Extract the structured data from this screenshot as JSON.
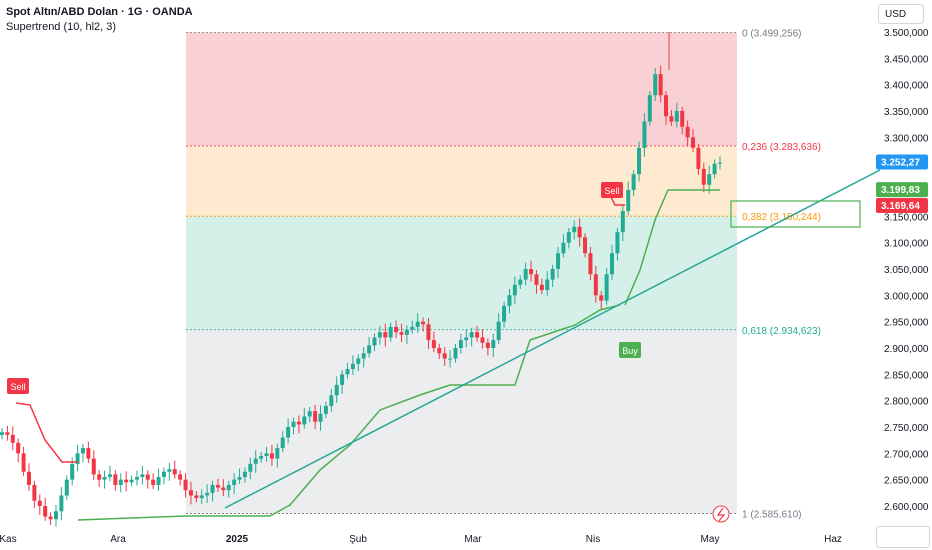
{
  "header": {
    "title": "Spot Altın/ABD Dolan · 1G · OANDA",
    "indicator": "Supertrend (10, hl2, 3)",
    "currency": "USD"
  },
  "colors": {
    "up": "#22ab94",
    "down": "#f23645",
    "trendline": "#26a69a",
    "supertrend_up": "#4caf50",
    "supertrend_down": "#f23645",
    "fib_red": "#f7c2c6",
    "fib_orange": "#fde3c1",
    "fib_green": "#c7ebe2",
    "fib_grey": "#e6e7ea"
  },
  "chart_data": {
    "type": "candlestick",
    "y_ticks": [
      "3.500,000",
      "3.450,000",
      "3.400,000",
      "3.350,000",
      "3.300,000",
      "3.250,000",
      "3.200,000",
      "3.150,000",
      "3.100,000",
      "3.050,000",
      "3.000,000",
      "2.950,000",
      "2.900,000",
      "2.850,000",
      "2.800,000",
      "2.750,000",
      "2.700,000",
      "2.650,000",
      "2.600,000"
    ],
    "y_values": [
      3500,
      3450,
      3400,
      3350,
      3300,
      3250,
      3200,
      3150,
      3100,
      3050,
      3000,
      2950,
      2900,
      2850,
      2800,
      2750,
      2700,
      2650,
      2600
    ],
    "x_ticks": [
      "Kas",
      "Ara",
      "2025",
      "Şub",
      "Mar",
      "Nis",
      "May",
      "Haz"
    ],
    "fibonacci": [
      {
        "label": "0 (3.499,256)",
        "value": 3499.256
      },
      {
        "label": "0,236 (3.283,636)",
        "value": 3283.636
      },
      {
        "label": "0,382 (3.150,244)",
        "value": 3150.244
      },
      {
        "label": "0,618 (2.934,623)",
        "value": 2934.623
      },
      {
        "label": "1 (2.585,610)",
        "value": 2585.61
      }
    ],
    "price_labels": [
      {
        "text": "3.252,27",
        "value": 3252.27,
        "color": "#2196f3"
      },
      {
        "text": "3.199,83",
        "value": 3199.83,
        "color": "#4caf50"
      },
      {
        "text": "3.169,64",
        "value": 3169.64,
        "color": "#f23645"
      }
    ],
    "signals": [
      {
        "text": "Sell",
        "type": "sell"
      },
      {
        "text": "Sell",
        "type": "sell"
      },
      {
        "text": "Buy",
        "type": "buy"
      }
    ],
    "closes": [
      2740,
      2735,
      2720,
      2700,
      2665,
      2640,
      2610,
      2600,
      2580,
      2575,
      2590,
      2620,
      2650,
      2680,
      2700,
      2710,
      2690,
      2660,
      2650,
      2655,
      2660,
      2640,
      2650,
      2645,
      2650,
      2655,
      2660,
      2650,
      2640,
      2655,
      2665,
      2670,
      2660,
      2650,
      2630,
      2620,
      2615,
      2620,
      2625,
      2640,
      2635,
      2630,
      2640,
      2650,
      2655,
      2665,
      2680,
      2690,
      2695,
      2700,
      2690,
      2710,
      2730,
      2750,
      2760,
      2755,
      2770,
      2780,
      2760,
      2775,
      2790,
      2810,
      2830,
      2850,
      2860,
      2870,
      2880,
      2890,
      2905,
      2920,
      2930,
      2920,
      2940,
      2930,
      2925,
      2935,
      2940,
      2950,
      2945,
      2915,
      2900,
      2890,
      2880,
      2880,
      2900,
      2915,
      2920,
      2930,
      2920,
      2910,
      2900,
      2915,
      2950,
      2980,
      3000,
      3020,
      3030,
      3050,
      3040,
      3020,
      3010,
      3030,
      3050,
      3080,
      3100,
      3120,
      3130,
      3110,
      3080,
      3040,
      3000,
      2990,
      3040,
      3080,
      3120,
      3160,
      3200,
      3230,
      3280,
      3330,
      3380,
      3420,
      3380,
      3340,
      3330,
      3350,
      3320,
      3300,
      3280,
      3240,
      3210,
      3230,
      3250,
      3252
    ]
  }
}
